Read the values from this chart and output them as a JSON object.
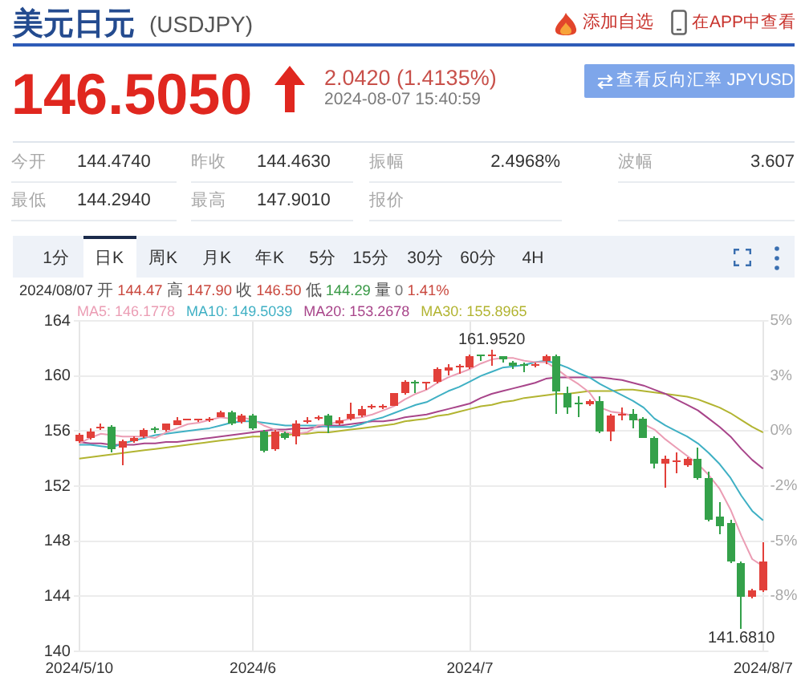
{
  "chart_data": {
    "type": "candlestick",
    "title": "美元日元",
    "subtitle": "(USDJPY)",
    "categories": [
      "2024/5/10",
      null,
      null,
      null,
      null,
      null,
      null,
      null,
      null,
      null,
      null,
      null,
      null,
      null,
      null,
      null,
      "2024/6",
      null,
      null,
      null,
      null,
      null,
      null,
      null,
      null,
      null,
      null,
      null,
      null,
      null,
      null,
      null,
      null,
      null,
      null,
      null,
      "2024/7",
      null,
      null,
      null,
      null,
      null,
      null,
      null,
      null,
      null,
      null,
      null,
      null,
      null,
      null,
      null,
      null,
      null,
      null,
      null,
      null,
      null,
      null,
      null,
      null,
      null,
      null,
      "2024/8/7"
    ],
    "ohlc": [
      [
        155.3,
        155.8,
        155.2,
        155.7
      ],
      [
        155.5,
        156.2,
        155.4,
        156.0
      ],
      [
        156.15,
        156.5,
        156.1,
        156.35
      ],
      [
        156.35,
        156.45,
        154.5,
        154.65
      ],
      [
        154.8,
        155.4,
        153.55,
        155.3
      ],
      [
        155.3,
        155.6,
        155.2,
        155.5
      ],
      [
        155.6,
        156.2,
        155.5,
        156.05
      ],
      [
        156.2,
        156.35,
        155.9,
        156.1
      ],
      [
        156.05,
        156.6,
        156.0,
        156.5
      ],
      [
        156.45,
        157.0,
        156.4,
        156.8
      ],
      [
        156.8,
        156.9,
        156.75,
        156.85
      ],
      [
        156.75,
        156.85,
        156.7,
        156.8
      ],
      [
        156.75,
        157.0,
        156.7,
        156.95
      ],
      [
        157.05,
        157.5,
        157.0,
        157.4
      ],
      [
        157.4,
        157.45,
        156.4,
        156.5
      ],
      [
        156.65,
        157.3,
        156.6,
        157.15
      ],
      [
        157.15,
        157.3,
        156.05,
        156.15
      ],
      [
        156.0,
        156.1,
        154.45,
        154.6
      ],
      [
        154.7,
        156.1,
        154.6,
        156.0
      ],
      [
        155.9,
        156.0,
        155.4,
        155.5
      ],
      [
        155.6,
        156.8,
        155.05,
        156.6
      ],
      [
        156.65,
        157.0,
        156.6,
        156.8
      ],
      [
        156.9,
        157.1,
        156.75,
        157.0
      ],
      [
        157.1,
        157.2,
        155.8,
        156.45
      ],
      [
        156.5,
        157.0,
        156.4,
        156.8
      ],
      [
        156.85,
        158.05,
        156.8,
        157.2
      ],
      [
        157.1,
        157.8,
        157.0,
        157.65
      ],
      [
        157.7,
        158.0,
        157.55,
        157.8
      ],
      [
        157.7,
        157.95,
        157.6,
        157.85
      ],
      [
        157.85,
        158.8,
        157.8,
        158.7
      ],
      [
        158.7,
        159.65,
        158.6,
        159.55
      ],
      [
        159.5,
        159.7,
        158.8,
        159.45
      ],
      [
        159.4,
        159.5,
        159.0,
        159.45
      ],
      [
        159.55,
        160.6,
        159.5,
        160.5
      ],
      [
        160.4,
        160.9,
        160.0,
        160.6
      ],
      [
        160.6,
        160.9,
        160.2,
        160.75
      ],
      [
        160.6,
        161.5,
        160.5,
        161.4
      ],
      [
        161.5,
        161.6,
        161.05,
        161.4
      ],
      [
        161.4,
        161.952,
        160.7,
        161.6
      ],
      [
        161.4,
        161.45,
        161.0,
        161.15
      ],
      [
        161.0,
        161.1,
        160.5,
        160.7
      ],
      [
        160.8,
        161.0,
        160.3,
        160.75
      ],
      [
        160.7,
        161.0,
        160.6,
        160.9
      ],
      [
        161.05,
        161.6,
        160.9,
        161.4
      ],
      [
        161.45,
        161.6,
        157.2,
        158.9
      ],
      [
        158.7,
        159.25,
        157.2,
        157.7
      ],
      [
        158.0,
        158.5,
        157.0,
        157.9
      ],
      [
        157.95,
        158.3,
        157.85,
        158.15
      ],
      [
        158.2,
        158.5,
        155.9,
        155.95
      ],
      [
        155.95,
        157.2,
        155.3,
        157.1
      ],
      [
        157.1,
        157.75,
        156.8,
        157.3
      ],
      [
        157.3,
        157.6,
        156.25,
        156.8
      ],
      [
        156.9,
        157.0,
        155.45,
        155.5
      ],
      [
        155.5,
        155.6,
        153.3,
        153.65
      ],
      [
        153.65,
        154.2,
        151.85,
        153.95
      ],
      [
        153.7,
        154.4,
        152.9,
        153.9
      ],
      [
        153.55,
        154.1,
        153.4,
        153.95
      ],
      [
        153.95,
        154.85,
        152.5,
        152.6
      ],
      [
        152.6,
        153.0,
        149.4,
        149.6
      ],
      [
        149.8,
        150.85,
        148.5,
        149.05
      ],
      [
        149.35,
        149.6,
        146.4,
        146.5
      ],
      [
        146.45,
        146.5,
        141.681,
        144.0
      ],
      [
        144.0,
        144.6,
        143.9,
        144.46
      ],
      [
        144.47,
        147.9,
        144.29,
        146.5
      ]
    ],
    "colors": [
      "#e2403a",
      "#e2403a",
      "#e2403a",
      "#34a14a",
      "#e2403a",
      "#e2403a",
      "#e2403a",
      "#34a14a",
      "#e2403a",
      "#e2403a",
      "#e2403a",
      "#e2403a",
      "#e2403a",
      "#e2403a",
      "#34a14a",
      "#e2403a",
      "#34a14a",
      "#34a14a",
      "#e2403a",
      "#34a14a",
      "#e2403a",
      "#e2403a",
      "#e2403a",
      "#34a14a",
      "#e2403a",
      "#e2403a",
      "#e2403a",
      "#e2403a",
      "#e2403a",
      "#e2403a",
      "#e2403a",
      "#34a14a",
      "#e2403a",
      "#e2403a",
      "#e2403a",
      "#e2403a",
      "#e2403a",
      "#34a14a",
      "#e2403a",
      "#34a14a",
      "#34a14a",
      "#34a14a",
      "#e2403a",
      "#e2403a",
      "#34a14a",
      "#34a14a",
      "#34a14a",
      "#e2403a",
      "#34a14a",
      "#e2403a",
      "#e2403a",
      "#34a14a",
      "#34a14a",
      "#34a14a",
      "#e2403a",
      "#e2403a",
      "#e2403a",
      "#34a14a",
      "#34a14a",
      "#34a14a",
      "#34a14a",
      "#34a14a",
      "#e2403a",
      "#e2403a"
    ],
    "series": [
      {
        "type": "line",
        "name": "MA5: 146.1778",
        "color": "#eb9db4",
        "values": [
          155.1,
          155.5,
          155.8,
          155.7,
          155.6,
          155.6,
          155.6,
          155.5,
          155.9,
          156.2,
          156.5,
          156.6,
          156.8,
          157.0,
          156.9,
          157.0,
          156.8,
          156.4,
          156.1,
          155.9,
          155.8,
          155.9,
          156.4,
          156.5,
          156.7,
          156.9,
          157.0,
          157.2,
          157.5,
          157.8,
          158.3,
          158.7,
          159.0,
          159.5,
          159.9,
          160.2,
          160.5,
          160.9,
          161.2,
          161.3,
          161.3,
          161.1,
          161.0,
          161.0,
          160.5,
          159.9,
          159.4,
          158.8,
          157.7,
          157.4,
          157.3,
          157.1,
          156.5,
          156.1,
          155.4,
          154.8,
          154.2,
          153.6,
          152.8,
          151.8,
          150.3,
          148.4,
          146.7,
          146.1778
        ]
      },
      {
        "type": "line",
        "name": "MA10: 149.5039",
        "color": "#3fb0c4",
        "values": [
          155.0,
          155.0,
          154.9,
          154.8,
          155.1,
          155.3,
          155.5,
          155.7,
          155.8,
          155.9,
          156.0,
          156.1,
          156.2,
          156.4,
          156.6,
          156.7,
          156.7,
          156.6,
          156.5,
          156.4,
          156.4,
          156.4,
          156.4,
          156.3,
          156.3,
          156.3,
          156.5,
          156.8,
          157.0,
          157.3,
          157.6,
          157.9,
          158.1,
          158.5,
          158.9,
          159.2,
          159.6,
          160.0,
          160.3,
          160.6,
          160.7,
          160.8,
          161.0,
          161.1,
          160.9,
          160.6,
          160.2,
          159.9,
          159.4,
          159.0,
          158.6,
          158.2,
          157.7,
          156.9,
          156.4,
          156.0,
          155.6,
          155.1,
          154.4,
          153.6,
          152.6,
          151.3,
          150.2,
          149.5039
        ]
      },
      {
        "type": "line",
        "name": "MA20: 153.2678",
        "color": "#a8458a",
        "values": [
          155.2,
          155.1,
          155.1,
          155.0,
          155.0,
          155.0,
          155.1,
          155.1,
          155.2,
          155.2,
          155.3,
          155.4,
          155.5,
          155.6,
          155.7,
          155.8,
          155.9,
          156.0,
          156.1,
          156.1,
          156.2,
          156.2,
          156.3,
          156.4,
          156.4,
          156.5,
          156.6,
          156.7,
          156.7,
          156.8,
          157.0,
          157.1,
          157.2,
          157.4,
          157.6,
          157.8,
          158.0,
          158.4,
          158.7,
          158.9,
          159.1,
          159.3,
          159.5,
          159.8,
          159.9,
          159.9,
          159.9,
          159.9,
          159.9,
          159.8,
          159.7,
          159.5,
          159.3,
          159.0,
          158.7,
          158.3,
          157.9,
          157.5,
          156.9,
          156.3,
          155.6,
          154.7,
          153.9,
          153.2678
        ]
      },
      {
        "type": "line",
        "name": "MA30: 155.8965",
        "color": "#b2b431",
        "values": [
          154.0,
          154.1,
          154.2,
          154.3,
          154.4,
          154.5,
          154.6,
          154.7,
          154.8,
          154.9,
          155.0,
          155.1,
          155.2,
          155.3,
          155.4,
          155.5,
          155.6,
          155.6,
          155.7,
          155.7,
          155.8,
          155.8,
          155.9,
          155.9,
          156.0,
          156.1,
          156.2,
          156.3,
          156.4,
          156.5,
          156.7,
          156.8,
          156.9,
          157.1,
          157.2,
          157.4,
          157.6,
          157.8,
          157.9,
          158.1,
          158.2,
          158.4,
          158.5,
          158.6,
          158.7,
          158.7,
          158.8,
          158.9,
          158.9,
          158.9,
          159.0,
          159.0,
          158.9,
          158.8,
          158.7,
          158.6,
          158.5,
          158.3,
          158.0,
          157.7,
          157.3,
          156.8,
          156.3,
          155.8965
        ]
      }
    ],
    "ylim": [
      140,
      164
    ],
    "yticks": [
      140,
      144,
      148,
      152,
      156,
      160,
      164
    ],
    "y2lim": [
      -10.14,
      5.26
    ],
    "y2ticks": [
      {
        "value": 5.26,
        "label": "5%"
      },
      {
        "value": 2.7,
        "label": "3%"
      },
      {
        "value": 0.13,
        "label": "0%"
      },
      {
        "value": -2.44,
        "label": "-2%"
      },
      {
        "value": -5.01,
        "label": "-5%"
      },
      {
        "value": -7.57,
        "label": "-8%"
      }
    ],
    "grid": true,
    "legend": "top left",
    "marker": "none",
    "annotations": [
      "添加自选",
      "在APP中查看",
      "146.5050",
      "2.0420 (1.4135%)",
      "2024-08-07 15:40:59",
      "查看反向汇率 JPYUSD",
      "今开",
      "144.4740",
      "昨收",
      "144.4630",
      "振幅",
      "2.4968%",
      "波幅",
      "3.607",
      "最低",
      "144.2940",
      "最高",
      "147.9010",
      "报价",
      "1分",
      "日K",
      "周K",
      "月K",
      "年K",
      "5分",
      "15分",
      "30分",
      "60分",
      "4H",
      "2024/08/07 开 144.47 高 147.90 收 146.50 低 144.29 量 0 1.41%",
      {
        "text": "161.9520",
        "y": 161.952
      },
      {
        "text": "141.6810",
        "y": 141.681
      }
    ]
  }
}
